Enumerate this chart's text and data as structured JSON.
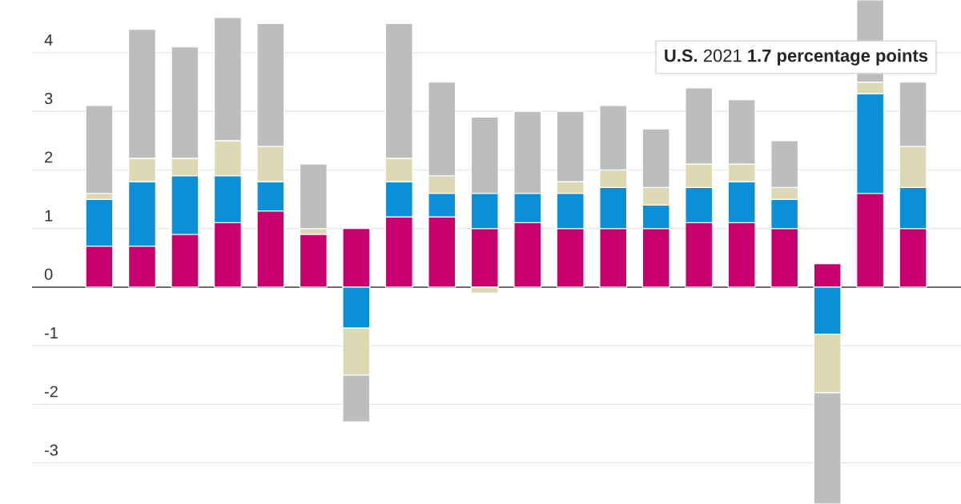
{
  "chart_data": {
    "type": "bar",
    "stacked": true,
    "categories": [
      null,
      null,
      null,
      null,
      null,
      null,
      null,
      null,
      null,
      null,
      null,
      null,
      null,
      null,
      null,
      null,
      null,
      null,
      null,
      null
    ],
    "series": [
      {
        "color": "#c8006e",
        "values": [
          0.7,
          0.7,
          0.9,
          1.1,
          1.3,
          0.9,
          1.0,
          1.2,
          1.2,
          1.0,
          1.1,
          1.0,
          1.0,
          1.0,
          1.1,
          1.1,
          1.0,
          0.4,
          1.6,
          1.0
        ]
      },
      {
        "color": "#0a8fd8",
        "values": [
          0.8,
          1.1,
          1.0,
          0.8,
          0.5,
          null,
          -0.7,
          0.6,
          0.4,
          0.6,
          0.5,
          0.6,
          0.7,
          0.4,
          0.6,
          0.7,
          0.5,
          -0.8,
          1.7,
          0.7
        ]
      },
      {
        "color": "#dcd9b4",
        "values": [
          0.1,
          0.4,
          0.3,
          0.6,
          0.6,
          0.1,
          -0.8,
          0.4,
          0.3,
          -0.1,
          null,
          0.2,
          0.3,
          0.3,
          0.4,
          0.3,
          0.2,
          -1.0,
          0.2,
          0.7
        ]
      },
      {
        "color": "#bdbdbd",
        "values": [
          1.5,
          2.2,
          1.9,
          2.1,
          2.1,
          1.1,
          -0.8,
          2.3,
          1.6,
          1.3,
          1.4,
          1.2,
          1.1,
          1.0,
          1.3,
          1.1,
          0.8,
          -1.9,
          1.4,
          1.1
        ]
      }
    ],
    "ylim": [
      -3.7,
      4.9
    ],
    "yticks": [
      -3,
      -2,
      -1,
      0,
      1,
      2,
      3,
      4
    ],
    "grid": "y",
    "tick_labels": "y",
    "annotations": [
      "**U.S.** 2021 **1.7 percentage points**"
    ]
  }
}
